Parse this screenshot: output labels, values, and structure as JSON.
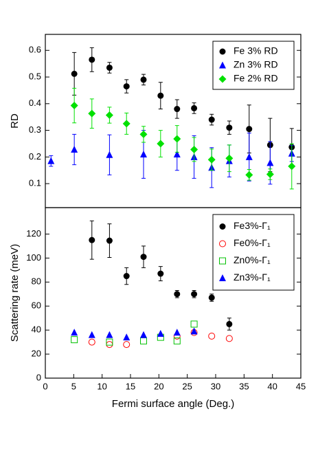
{
  "chart_data": [
    {
      "type": "scatter",
      "ylabel": "RD",
      "xlim": [
        0,
        45
      ],
      "ylim": [
        0.01,
        0.66
      ],
      "yticks": [
        0.1,
        0.2,
        0.3,
        0.4,
        0.5,
        0.6
      ],
      "legend": "upper right",
      "series": [
        {
          "name": "Fe 3% RD",
          "color": "#000000",
          "marker": "circle",
          "x": [
            5.1,
            8.2,
            11.3,
            14.3,
            17.3,
            20.3,
            23.2,
            26.2,
            29.3,
            32.4,
            35.9,
            39.6,
            43.4
          ],
          "values": [
            0.512,
            0.565,
            0.535,
            0.465,
            0.49,
            0.43,
            0.38,
            0.383,
            0.34,
            0.31,
            0.305,
            0.245,
            0.237
          ],
          "errors": [
            0.08,
            0.045,
            0.02,
            0.025,
            0.02,
            0.05,
            0.035,
            0.02,
            0.02,
            0.025,
            0.09,
            0.1,
            0.07
          ]
        },
        {
          "name": "Zn 3% RD",
          "color": "#0000ff",
          "marker": "triangle",
          "x": [
            1.0,
            5.1,
            11.3,
            17.3,
            23.2,
            26.2,
            29.3,
            32.4,
            35.9,
            39.6,
            43.4
          ],
          "values": [
            0.185,
            0.228,
            0.208,
            0.21,
            0.21,
            0.2,
            0.16,
            0.185,
            0.2,
            0.178,
            0.213
          ],
          "errors": [
            0.02,
            0.057,
            0.075,
            0.09,
            0.06,
            0.08,
            0.075,
            0.06,
            0.09,
            0.08,
            0.03
          ]
        },
        {
          "name": "Fe 2% RD",
          "color": "#00e000",
          "marker": "diamond",
          "x": [
            5.1,
            8.2,
            11.3,
            14.3,
            17.3,
            20.3,
            23.2,
            26.2,
            29.3,
            32.4,
            35.9,
            39.6,
            43.4
          ],
          "values": [
            0.393,
            0.363,
            0.357,
            0.325,
            0.285,
            0.25,
            0.268,
            0.228,
            0.19,
            0.195,
            0.133,
            0.135,
            0.165
          ],
          "errors": [
            0.065,
            0.055,
            0.03,
            0.04,
            0.03,
            0.05,
            0.05,
            0.045,
            0.04,
            0.05,
            0.02,
            0.02,
            0.085
          ]
        }
      ]
    },
    {
      "type": "scatter",
      "xlabel": "Fermi surface angle (Deg.)",
      "ylabel": "Scattering rate (meV)",
      "xlim": [
        0,
        45
      ],
      "ylim": [
        0,
        142
      ],
      "xticks": [
        0,
        5,
        10,
        15,
        20,
        25,
        30,
        35,
        40,
        45
      ],
      "yticks": [
        0,
        20,
        40,
        60,
        80,
        100,
        120
      ],
      "legend": "upper right",
      "series": [
        {
          "name": "Fe3%-Γ₁",
          "color": "#000000",
          "marker": "circle",
          "x": [
            8.2,
            11.3,
            14.3,
            17.3,
            20.3,
            23.2,
            26.2,
            29.3,
            32.4
          ],
          "values": [
            115,
            114.5,
            85,
            101,
            87,
            70,
            70,
            67,
            45
          ],
          "errors": [
            16,
            14,
            7,
            9,
            6,
            3,
            3,
            3,
            5
          ]
        },
        {
          "name": "Fe0%-Γ₁",
          "color": "#ff0000",
          "marker": "open-circle",
          "x": [
            8.2,
            11.3,
            14.3,
            23.2,
            26.2,
            29.3,
            32.4
          ],
          "values": [
            30,
            28,
            28,
            35,
            38,
            35,
            33
          ]
        },
        {
          "name": "Zn0%-Γ₁",
          "color": "#00c000",
          "marker": "open-square",
          "x": [
            5.1,
            11.3,
            17.3,
            20.3,
            23.2,
            26.2
          ],
          "values": [
            32,
            30,
            31,
            34,
            31,
            45
          ]
        },
        {
          "name": "Zn3%-Γ₁",
          "color": "#0000ff",
          "marker": "triangle",
          "x": [
            5.1,
            8.2,
            11.3,
            14.3,
            17.3,
            20.3,
            23.2,
            26.2
          ],
          "values": [
            38,
            36,
            36,
            34,
            36,
            37,
            38,
            39
          ]
        }
      ]
    }
  ]
}
